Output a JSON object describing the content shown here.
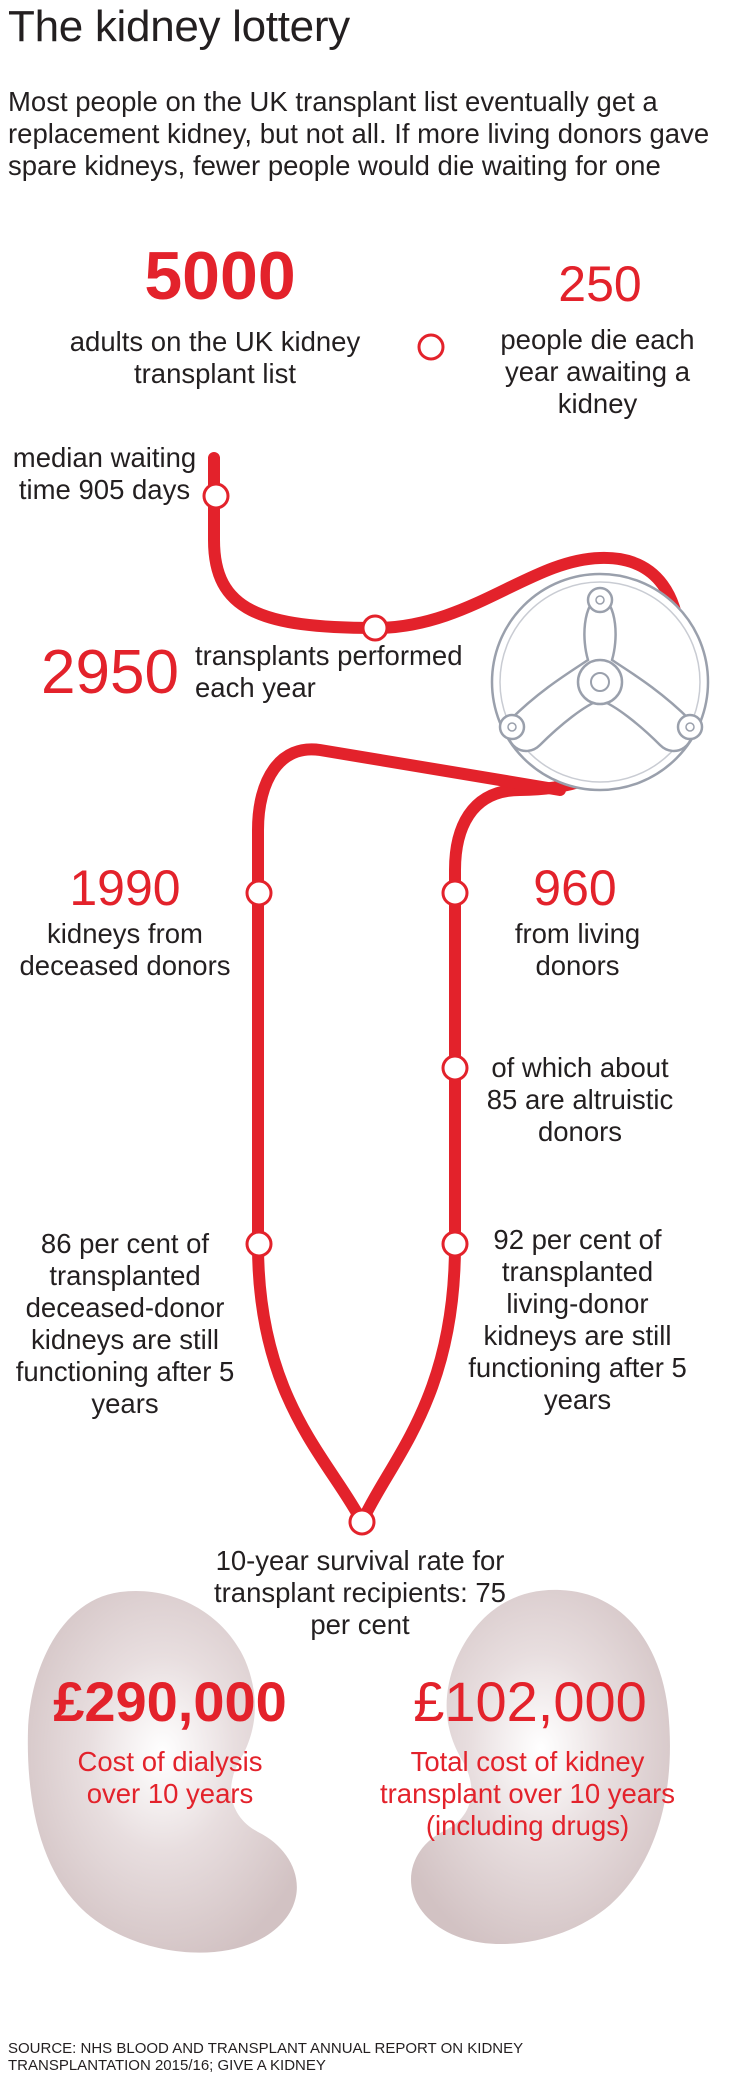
{
  "title": "The kidney lottery",
  "intro": "Most people on the UK transplant list eventually get a replacement kidney, but not all. If more living donors gave spare kidneys, fewer people would die waiting for one",
  "list": {
    "number": "5000",
    "label": "adults on the UK kidney transplant list"
  },
  "deaths": {
    "number": "250",
    "label": "people die each year awaiting a kidney"
  },
  "waiting": {
    "label": "median waiting time 905 days"
  },
  "transplants": {
    "number": "2950",
    "label": "transplants performed each year"
  },
  "deceased": {
    "number": "1990",
    "label": "kidneys from deceased donors"
  },
  "living": {
    "number": "960",
    "label": "from living donors"
  },
  "altruistic": {
    "label": "of which about 85 are altruistic donors"
  },
  "deceased_survival": {
    "label": "86 per cent of transplanted deceased-donor kidneys are still functioning after 5 years"
  },
  "living_survival": {
    "label": "92 per cent of transplanted living-donor kidneys are still functioning after 5 years"
  },
  "survival_rate": {
    "label": "10-year survival rate for transplant recipients: 75 per cent"
  },
  "dialysis": {
    "amount": "£290,000",
    "label": "Cost of dialysis over 10 years"
  },
  "transplant_cost": {
    "amount": "£102,000",
    "label": "Total cost of kidney transplant over 10 years (including drugs)"
  },
  "source": "SOURCE: NHS BLOOD AND TRANSPLANT ANNUAL REPORT ON KIDNEY TRANSPLANTATION 2015/16; GIVE A KIDNEY",
  "colors": {
    "accent": "#e3222b",
    "kidney": "#ddd0d1",
    "text": "#231f20"
  },
  "icons": {
    "wheel": "lottery-wheel-icon",
    "kidney_left": "kidney-left-icon",
    "kidney_right": "kidney-right-icon"
  }
}
